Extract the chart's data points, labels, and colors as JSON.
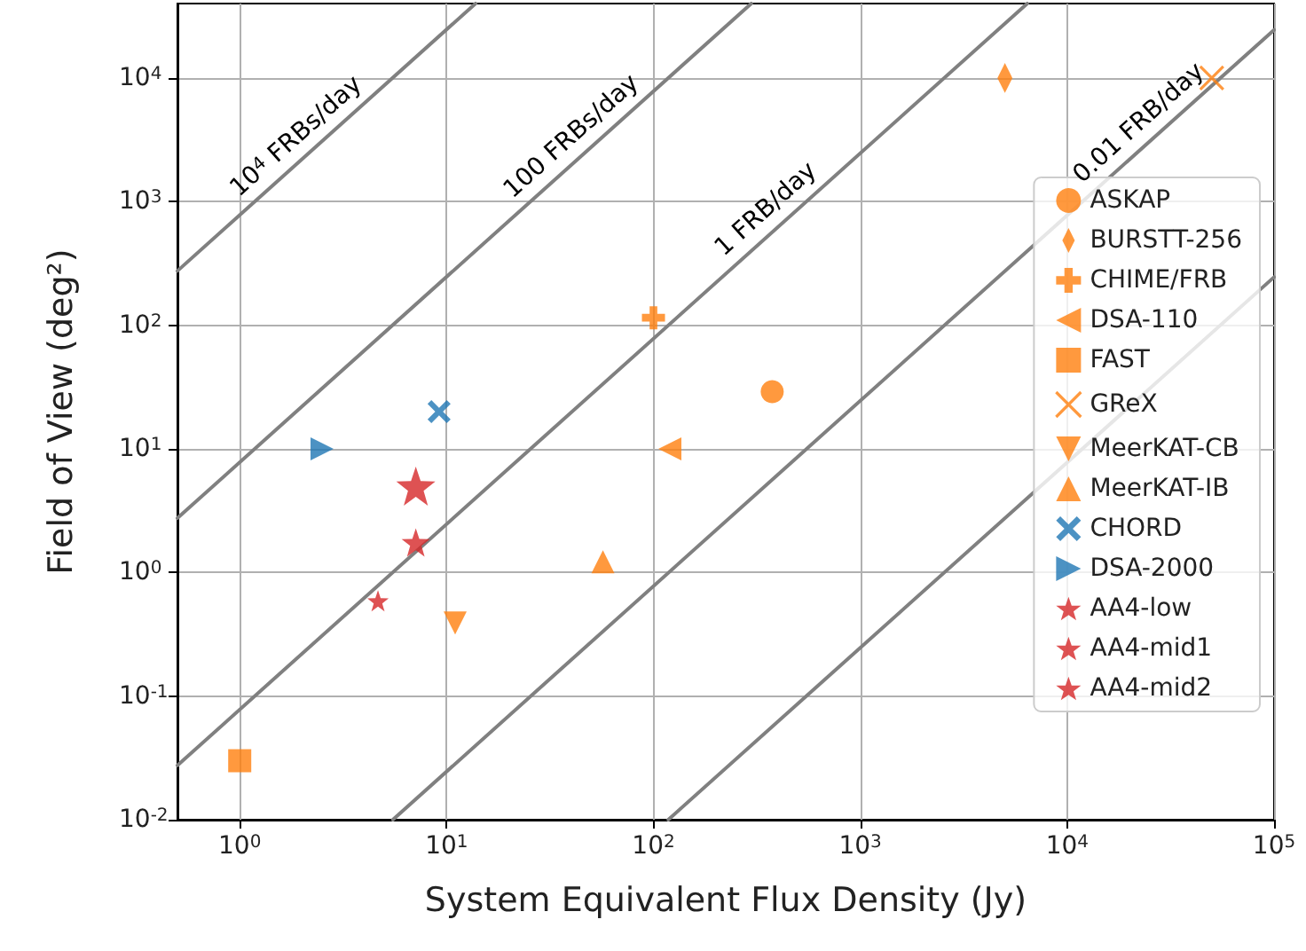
{
  "chart_data": {
    "type": "scatter",
    "xlabel": "System Equivalent Flux Density (Jy)",
    "ylabel": "Field of View (deg²)",
    "log": "xy",
    "grid": true,
    "legend": "right",
    "xlim": [
      0.5,
      100000
    ],
    "xticks": [
      {
        "value": 1,
        "label": "10$^{0}$"
      },
      {
        "value": 10,
        "label": "10$^{1}$"
      },
      {
        "value": 100,
        "label": "10$^{2}$"
      },
      {
        "value": 1000,
        "label": "10$^{3}$"
      },
      {
        "value": 10000,
        "label": "10$^{4}$"
      },
      {
        "value": 100000,
        "label": "10$^{5}$"
      }
    ],
    "ylim": [
      0.01,
      40000
    ],
    "yticks": [
      {
        "value": 0.01,
        "label": "10$^{-2}$"
      },
      {
        "value": 0.1,
        "label": "10$^{-1}$"
      },
      {
        "value": 1,
        "label": "10$^{0}$"
      },
      {
        "value": 10,
        "label": "10$^{1}$"
      },
      {
        "value": 100,
        "label": "10$^{2}$"
      },
      {
        "value": 1000,
        "label": "10$^{3}$"
      },
      {
        "value": 10000,
        "label": "10$^{4}$"
      }
    ],
    "series": [
      {
        "type": "line",
        "color": "#808080",
        "marker": "none",
        "x": [
          0.5,
          13.8
        ],
        "values": [
          275,
          40000
        ]
      },
      {
        "type": "line",
        "color": "#808080",
        "marker": "none",
        "x": [
          0.5,
          297
        ],
        "values": [
          2.75,
          40000
        ]
      },
      {
        "type": "line",
        "color": "#808080",
        "marker": "none",
        "x": [
          0.5,
          6410
        ],
        "values": [
          0.0275,
          40000
        ]
      },
      {
        "type": "line",
        "color": "#808080",
        "marker": "none",
        "x": [
          5.5,
          100000
        ],
        "values": [
          0.01,
          24500
        ]
      },
      {
        "type": "line",
        "color": "#808080",
        "marker": "none",
        "x": [
          118,
          100000
        ],
        "values": [
          0.01,
          245
        ]
      },
      {
        "name": "ASKAP",
        "color": "#ff7f0e",
        "marker": "circle",
        "x": [
          375
        ],
        "values": [
          29
        ]
      },
      {
        "name": "BURSTT-256",
        "color": "#ff7f0e",
        "marker": "diamond",
        "x": [
          5000
        ],
        "values": [
          10000
        ]
      },
      {
        "name": "CHIME/FRB",
        "color": "#ff7f0e",
        "marker": "plus",
        "x": [
          100
        ],
        "values": [
          115
        ]
      },
      {
        "name": "DSA-110",
        "color": "#ff7f0e",
        "marker": "triangle_left",
        "x": [
          120
        ],
        "values": [
          10
        ]
      },
      {
        "name": "FAST",
        "color": "#ff7f0e",
        "marker": "square",
        "x": [
          1
        ],
        "values": [
          0.03
        ]
      },
      {
        "name": "GReX",
        "color": "#ff7f0e",
        "marker": "x",
        "x": [
          50000
        ],
        "values": [
          10000
        ]
      },
      {
        "name": "MeerKAT-CB",
        "color": "#ff7f0e",
        "marker": "triangle_down",
        "x": [
          11
        ],
        "values": [
          0.39
        ]
      },
      {
        "name": "MeerKAT-IB",
        "color": "#ff7f0e",
        "marker": "triangle",
        "x": [
          57
        ],
        "values": [
          1.22
        ]
      },
      {
        "name": "CHORD",
        "color": "#1f77b4",
        "marker": "cross",
        "x": [
          9.2
        ],
        "values": [
          20
        ]
      },
      {
        "name": "DSA-2000",
        "color": "#1f77b4",
        "marker": "triangle_right",
        "x": [
          2.5
        ],
        "values": [
          10
        ]
      },
      {
        "name": "AA4-low",
        "color": "#d62728",
        "marker": "star",
        "x": [
          7.1
        ],
        "values": [
          5
        ]
      },
      {
        "name": "AA4-mid1",
        "color": "#d62728",
        "marker": "star",
        "x": [
          7.1
        ],
        "values": [
          1.75
        ]
      },
      {
        "name": "AA4-mid2",
        "color": "#d62728",
        "marker": "star",
        "x": [
          4.66
        ],
        "values": [
          0.59
        ]
      }
    ],
    "annotations": [
      {
        "text": "10$^{4}$ FRBs/day",
        "x": 2.2,
        "y": 2500
      },
      {
        "text": "100 FRBs/day",
        "x": 47,
        "y": 2500
      },
      {
        "text": "1 FRB/day",
        "x": 410,
        "y": 645
      },
      {
        "text": "0.01 FRB/day",
        "x": 26000,
        "y": 3200
      }
    ]
  }
}
